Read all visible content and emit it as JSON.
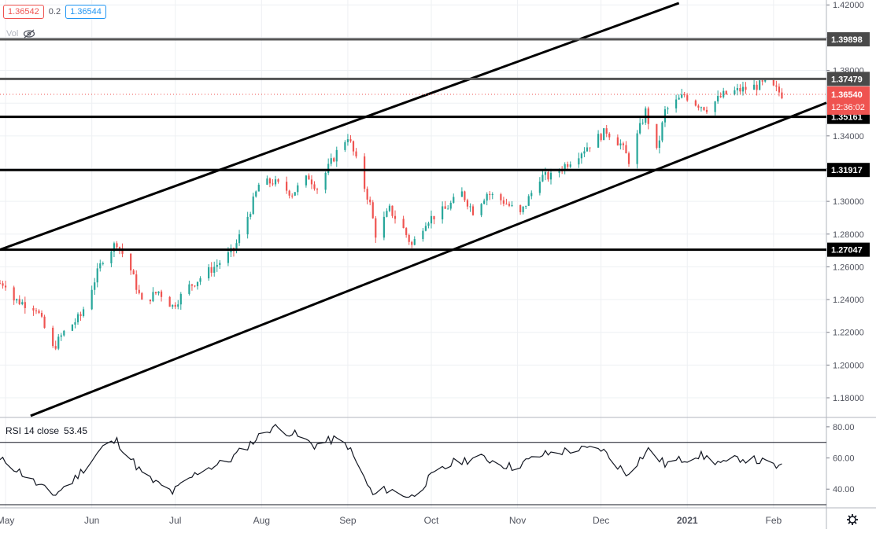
{
  "header": {
    "bid": "1.36542",
    "spread": "0.2",
    "ask": "1.36544",
    "vol_label": "Vol"
  },
  "rsi_panel": {
    "title": "RSI 14 close",
    "value": "53.45"
  },
  "icons": {
    "hide": "eye-slash-icon",
    "settings": "gear-icon"
  },
  "colors": {
    "up": "#26a69a",
    "down": "#ef5350",
    "level": "#000000",
    "grey_level": "#555555",
    "current": "#ef5350"
  },
  "chart_data": [
    {
      "type": "candlestick",
      "x_labels": [
        "May",
        "Jun",
        "Jul",
        "Aug",
        "Sep",
        "Oct",
        "Nov",
        "Dec",
        "2021",
        "Feb"
      ],
      "y_ticks": [
        "1.42000",
        "1.40000",
        "1.38000",
        "1.36000",
        "1.34000",
        "1.32000",
        "1.30000",
        "1.28000",
        "1.26000",
        "1.24000",
        "1.22000",
        "1.20000",
        "1.18000"
      ],
      "ylim": [
        1.168,
        1.423
      ],
      "xlim": [
        "2020-04-29",
        "2021-02-20"
      ],
      "levels": [
        {
          "value": 1.39898,
          "label": "1.39898",
          "style": "grey"
        },
        {
          "value": 1.37479,
          "label": "1.37479",
          "style": "grey"
        },
        {
          "value": 1.35161,
          "label": "1.35161",
          "style": "black"
        },
        {
          "value": 1.31917,
          "label": "1.31917",
          "style": "black"
        },
        {
          "value": 1.27047,
          "label": "1.27047",
          "style": "black"
        }
      ],
      "current_price": {
        "value": 1.3654,
        "label": "1.36540",
        "countdown": "12:36:02"
      },
      "trendlines": [
        {
          "from": [
            "2020-04-29",
            1.2705
          ],
          "to": [
            "2020-12-29",
            1.4211
          ]
        },
        {
          "from": [
            "2020-05-10",
            1.169
          ],
          "to": [
            "2021-02-20",
            1.3602
          ]
        }
      ],
      "anchors": [
        [
          "2020-05-01",
          1.25
        ],
        [
          "2020-05-04",
          1.24
        ],
        [
          "2020-05-12",
          1.235
        ],
        [
          "2020-05-18",
          1.21
        ],
        [
          "2020-05-22",
          1.22
        ],
        [
          "2020-05-28",
          1.23
        ],
        [
          "2020-06-05",
          1.265
        ],
        [
          "2020-06-10",
          1.275
        ],
        [
          "2020-06-15",
          1.258
        ],
        [
          "2020-06-19",
          1.238
        ],
        [
          "2020-06-25",
          1.245
        ],
        [
          "2020-06-30",
          1.236
        ],
        [
          "2020-07-06",
          1.248
        ],
        [
          "2020-07-15",
          1.26
        ],
        [
          "2020-07-22",
          1.27
        ],
        [
          "2020-07-28",
          1.295
        ],
        [
          "2020-07-31",
          1.31
        ],
        [
          "2020-08-05",
          1.312
        ],
        [
          "2020-08-12",
          1.305
        ],
        [
          "2020-08-18",
          1.315
        ],
        [
          "2020-08-21",
          1.308
        ],
        [
          "2020-08-28",
          1.33
        ],
        [
          "2020-09-01",
          1.34
        ],
        [
          "2020-09-03",
          1.33
        ],
        [
          "2020-09-09",
          1.298
        ],
        [
          "2020-09-11",
          1.28
        ],
        [
          "2020-09-16",
          1.295
        ],
        [
          "2020-09-21",
          1.283
        ],
        [
          "2020-09-24",
          1.273
        ],
        [
          "2020-09-29",
          1.288
        ],
        [
          "2020-10-06",
          1.295
        ],
        [
          "2020-10-12",
          1.305
        ],
        [
          "2020-10-16",
          1.294
        ],
        [
          "2020-10-21",
          1.305
        ],
        [
          "2020-10-27",
          1.3
        ],
        [
          "2020-11-02",
          1.292
        ],
        [
          "2020-11-09",
          1.315
        ],
        [
          "2020-11-13",
          1.315
        ],
        [
          "2020-11-20",
          1.325
        ],
        [
          "2020-11-27",
          1.335
        ],
        [
          "2020-12-03",
          1.343
        ],
        [
          "2020-12-08",
          1.335
        ],
        [
          "2020-12-11",
          1.325
        ],
        [
          "2020-12-17",
          1.355
        ],
        [
          "2020-12-21",
          1.33
        ],
        [
          "2020-12-24",
          1.355
        ],
        [
          "2020-12-31",
          1.365
        ],
        [
          "2021-01-04",
          1.36
        ],
        [
          "2021-01-08",
          1.357
        ],
        [
          "2021-01-14",
          1.365
        ],
        [
          "2021-01-20",
          1.368
        ],
        [
          "2021-01-25",
          1.37
        ],
        [
          "2021-01-29",
          1.372
        ],
        [
          "2021-02-02",
          1.368
        ],
        [
          "2021-02-04",
          1.3654
        ]
      ],
      "candle_body_color_up": "#26a69a",
      "candle_body_color_down": "#ef5350"
    },
    {
      "type": "line",
      "name": "RSI 14 close",
      "y_ticks": [
        "80.00",
        "60.00",
        "40.00"
      ],
      "ylim": [
        28,
        86
      ],
      "bands": [
        70,
        30
      ],
      "x_labels": [
        "May",
        "Jun",
        "Jul",
        "Aug",
        "Sep",
        "Oct",
        "Nov",
        "Dec",
        "2021",
        "Feb"
      ],
      "values_anchors": [
        [
          "2020-05-01",
          58
        ],
        [
          "2020-05-10",
          46
        ],
        [
          "2020-05-18",
          36
        ],
        [
          "2020-05-25",
          45
        ],
        [
          "2020-06-05",
          67
        ],
        [
          "2020-06-10",
          71
        ],
        [
          "2020-06-20",
          48
        ],
        [
          "2020-06-30",
          38
        ],
        [
          "2020-07-10",
          52
        ],
        [
          "2020-07-20",
          58
        ],
        [
          "2020-08-01",
          75
        ],
        [
          "2020-08-05",
          80
        ],
        [
          "2020-08-12",
          76
        ],
        [
          "2020-08-20",
          68
        ],
        [
          "2020-08-27",
          72
        ],
        [
          "2020-09-01",
          68
        ],
        [
          "2020-09-10",
          36
        ],
        [
          "2020-09-15",
          40
        ],
        [
          "2020-09-24",
          35
        ],
        [
          "2020-10-01",
          48
        ],
        [
          "2020-10-10",
          58
        ],
        [
          "2020-10-20",
          60
        ],
        [
          "2020-10-30",
          54
        ],
        [
          "2020-11-10",
          62
        ],
        [
          "2020-11-20",
          65
        ],
        [
          "2020-12-01",
          66
        ],
        [
          "2020-12-10",
          50
        ],
        [
          "2020-12-18",
          65
        ],
        [
          "2020-12-24",
          56
        ],
        [
          "2021-01-05",
          62
        ],
        [
          "2021-01-14",
          56
        ],
        [
          "2021-01-20",
          60
        ],
        [
          "2021-01-27",
          58
        ],
        [
          "2021-02-04",
          53.45
        ]
      ]
    }
  ]
}
